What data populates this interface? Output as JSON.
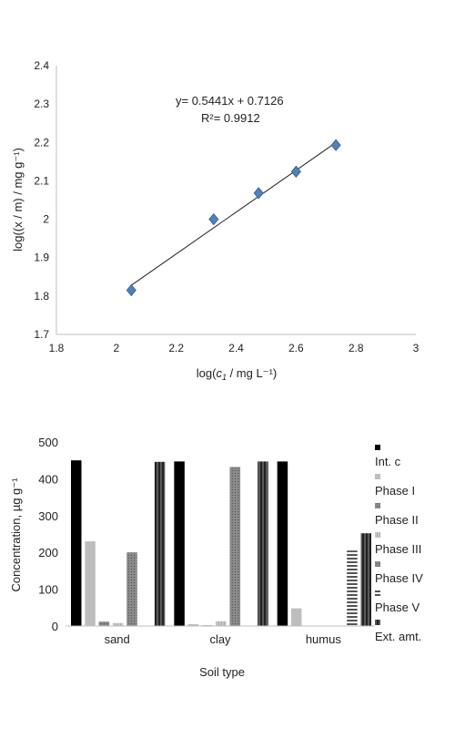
{
  "chart_data": [
    {
      "type": "scatter",
      "xlabel_prefix": "log(",
      "xlabel_var": "c",
      "xlabel_sub": "1",
      "xlabel_suffix": " / mg L⁻¹)",
      "ylabel": "log((x / m) / mg g⁻¹)",
      "xlim": [
        1.8,
        3.0
      ],
      "ylim": [
        1.7,
        2.4
      ],
      "x_ticks": [
        "1.8",
        "2",
        "2.2",
        "2.4",
        "2.6",
        "2.8",
        "3"
      ],
      "y_ticks": [
        "1.7",
        "1.8",
        "1.9",
        "2",
        "2.1",
        "2.2",
        "2.3",
        "2.4"
      ],
      "points": [
        {
          "x": 2.05,
          "y": 1.815
        },
        {
          "x": 2.325,
          "y": 2.0
        },
        {
          "x": 2.475,
          "y": 2.068
        },
        {
          "x": 2.6,
          "y": 2.124
        },
        {
          "x": 2.733,
          "y": 2.193
        }
      ],
      "trendline": {
        "slope": 0.5441,
        "intercept": 0.7126,
        "x_range": [
          2.05,
          2.733
        ]
      },
      "equation_label": "y= 0.5441x + 0.7126",
      "r2_label": "R²= 0.9912",
      "marker_color": "#4f81bd",
      "grid": false
    },
    {
      "type": "bar",
      "categories": [
        "sand",
        "clay",
        "humus"
      ],
      "xlabel": "Soil type",
      "ylabel": "Concentration, µg g⁻¹",
      "ylim": [
        0,
        500
      ],
      "y_ticks": [
        "0",
        "100",
        "200",
        "300",
        "400",
        "500"
      ],
      "legend_position": "right",
      "series": [
        {
          "name": "Int. c",
          "values": [
            450,
            447,
            447
          ],
          "color": "#000000"
        },
        {
          "name": "Phase I",
          "values": [
            230,
            5,
            48
          ],
          "color": "#bdbdbd"
        },
        {
          "name": "Phase II",
          "values": [
            12,
            2,
            0
          ],
          "color": "#808080"
        },
        {
          "name": "Phase III",
          "values": [
            8,
            13,
            0
          ],
          "color": "#cfcfcf"
        },
        {
          "name": "Phase IV",
          "values": [
            200,
            432,
            0
          ],
          "color": "#a6a6a6"
        },
        {
          "name": "Phase V",
          "values": [
            0,
            0,
            205
          ],
          "color": "#8c8c8c"
        },
        {
          "name": "Ext. amt.",
          "values": [
            446,
            447,
            252
          ],
          "color": "#3a3a3a"
        }
      ]
    }
  ]
}
